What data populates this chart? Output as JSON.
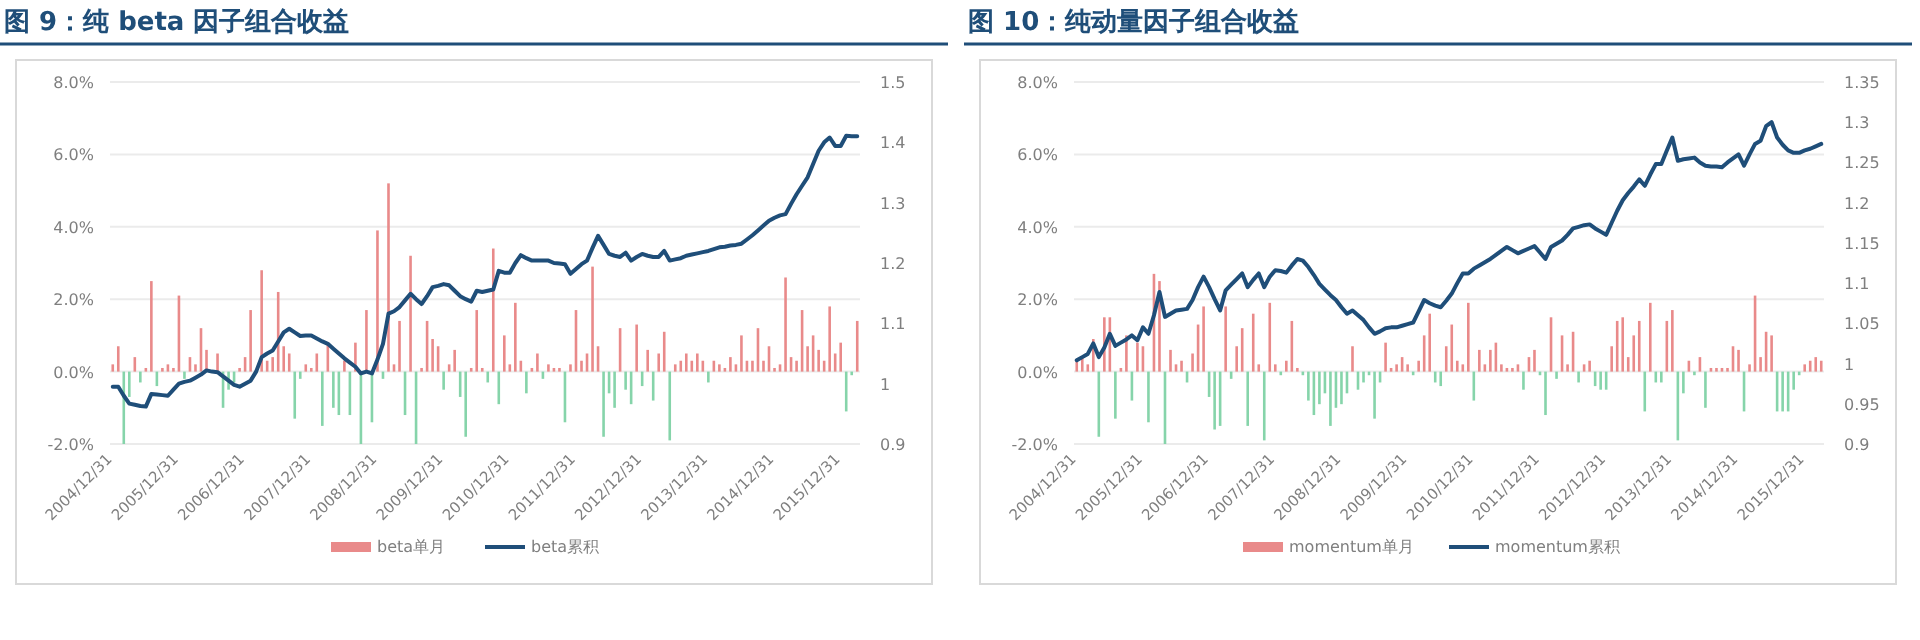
{
  "chart_data": [
    {
      "type": "bar",
      "title": "图 9：纯 beta 因子组合收益",
      "grid": "y",
      "legend": "bottom",
      "categories": [
        "2004/12/31",
        null,
        null,
        null,
        null,
        null,
        null,
        null,
        null,
        null,
        null,
        null,
        "2005/12/31",
        null,
        null,
        null,
        null,
        null,
        null,
        null,
        null,
        null,
        null,
        null,
        "2006/12/31",
        null,
        null,
        null,
        null,
        null,
        null,
        null,
        null,
        null,
        null,
        null,
        "2007/12/31",
        null,
        null,
        null,
        null,
        null,
        null,
        null,
        null,
        null,
        null,
        null,
        "2008/12/31",
        null,
        null,
        null,
        null,
        null,
        null,
        null,
        null,
        null,
        null,
        null,
        "2009/12/31",
        null,
        null,
        null,
        null,
        null,
        null,
        null,
        null,
        null,
        null,
        null,
        "2010/12/31",
        null,
        null,
        null,
        null,
        null,
        null,
        null,
        null,
        null,
        null,
        null,
        "2011/12/31",
        null,
        null,
        null,
        null,
        null,
        null,
        null,
        null,
        null,
        null,
        null,
        "2012/12/31",
        null,
        null,
        null,
        null,
        null,
        null,
        null,
        null,
        null,
        null,
        null,
        "2013/12/31",
        null,
        null,
        null,
        null,
        null,
        null,
        null,
        null,
        null,
        null,
        null,
        "2014/12/31",
        null,
        null,
        null,
        null,
        null,
        null,
        null,
        null,
        null,
        null,
        null,
        "2015/12/31",
        null,
        null,
        null
      ],
      "ylim": [
        -2,
        8
      ],
      "yticks": [
        {
          "value": -2,
          "label": "-2.0%"
        },
        {
          "value": 0,
          "label": "0.0%"
        },
        {
          "value": 2,
          "label": "2.0%"
        },
        {
          "value": 4,
          "label": "4.0%"
        },
        {
          "value": 6,
          "label": "6.0%"
        },
        {
          "value": 8,
          "label": "8.0%"
        }
      ],
      "y2lim": [
        0.9,
        1.5
      ],
      "y2ticks": [
        0.9,
        1,
        1.1,
        1.2,
        1.3,
        1.4,
        1.5
      ],
      "series": [
        {
          "name": "beta单月",
          "color": "#e98a8a",
          "values": [
            0.2,
            0.7,
            -2.0,
            -0.7,
            0.4,
            -0.3,
            0.1,
            2.5,
            -0.4,
            0.1,
            0.2,
            0.1,
            2.1,
            -0.2,
            0.4,
            0.2,
            1.2,
            0.6,
            null,
            0.5,
            -1.0,
            -0.5,
            -0.3,
            0.1,
            0.4,
            1.7,
            null,
            2.8,
            0.3,
            0.4,
            2.2,
            0.7,
            0.5,
            -1.3,
            -0.2,
            0.2,
            0.1,
            0.5,
            -1.5,
            0.8,
            -1.0,
            -1.2,
            0.3,
            -1.2,
            0.8,
            -2.0,
            1.7,
            -1.4,
            3.9,
            -0.2,
            5.2,
            0.2,
            1.4,
            -1.2,
            3.2,
            -2.0,
            0.1,
            1.4,
            0.9,
            0.7,
            -0.5,
            0.2,
            0.6,
            -0.7,
            -1.8,
            0.1,
            1.7,
            0.1,
            -0.3,
            3.4,
            -0.9,
            1.0,
            0.2,
            1.9,
            0.3,
            -0.6,
            0.1,
            0.5,
            -0.2,
            0.2,
            0.1,
            0.1,
            -1.4,
            0.2,
            1.7,
            0.3,
            0.5,
            2.9,
            0.7,
            -1.8,
            -0.6,
            -1.0,
            1.2,
            -0.5,
            -0.9,
            1.3,
            -0.4,
            0.6,
            -0.8,
            0.5,
            1.1,
            -1.9,
            0.2,
            0.3,
            0.5,
            0.3,
            0.5,
            0.3,
            -0.3,
            0.3,
            0.2,
            0.1,
            0.4,
            0.2,
            1.0,
            0.3,
            0.3,
            1.2,
            0.3,
            0.7,
            0.1,
            0.2,
            2.6,
            0.4,
            0.3,
            1.7,
            0.7,
            1.0,
            0.6,
            0.3,
            1.8,
            0.5,
            0.8,
            -1.1,
            -0.1,
            1.4
          ],
          "colors": [
            "#e98a8a",
            "#e98a8a",
            "#86d4aa",
            "#86d4aa",
            "#e98a8a",
            "#86d4aa",
            "#e98a8a",
            "#e98a8a",
            "#86d4aa",
            "#e98a8a",
            "#e98a8a",
            "#e98a8a",
            "#e98a8a",
            "#86d4aa",
            "#e98a8a",
            "#e98a8a",
            "#e98a8a",
            "#e98a8a",
            null,
            "#e98a8a",
            "#86d4aa",
            "#86d4aa",
            "#86d4aa",
            "#e98a8a",
            "#e98a8a",
            "#e98a8a",
            null,
            "#e98a8a",
            "#e98a8a",
            "#e98a8a",
            "#e98a8a",
            "#e98a8a",
            "#e98a8a",
            "#86d4aa",
            "#86d4aa",
            "#e98a8a",
            "#e98a8a",
            "#e98a8a",
            "#86d4aa",
            "#e98a8a",
            "#86d4aa",
            "#86d4aa",
            "#e98a8a",
            "#86d4aa",
            "#e98a8a",
            "#86d4aa",
            "#e98a8a",
            "#86d4aa",
            "#e98a8a",
            "#86d4aa",
            "#e98a8a",
            "#e98a8a",
            "#e98a8a",
            "#86d4aa",
            "#e98a8a",
            "#86d4aa",
            "#e98a8a",
            "#e98a8a",
            "#e98a8a",
            "#e98a8a",
            "#86d4aa",
            "#e98a8a",
            "#e98a8a",
            "#86d4aa",
            "#86d4aa",
            "#e98a8a",
            "#e98a8a",
            "#e98a8a",
            "#86d4aa",
            "#e98a8a",
            "#86d4aa",
            "#e98a8a",
            "#e98a8a",
            "#e98a8a",
            "#e98a8a",
            "#86d4aa",
            "#e98a8a",
            "#e98a8a",
            "#86d4aa",
            "#e98a8a",
            "#e98a8a",
            "#e98a8a",
            "#86d4aa",
            "#e98a8a",
            "#e98a8a",
            "#e98a8a",
            "#e98a8a",
            "#e98a8a",
            "#e98a8a",
            "#86d4aa",
            "#86d4aa",
            "#86d4aa",
            "#e98a8a",
            "#86d4aa",
            "#86d4aa",
            "#e98a8a",
            "#86d4aa",
            "#e98a8a",
            "#86d4aa",
            "#e98a8a",
            "#e98a8a",
            "#86d4aa",
            "#e98a8a",
            "#e98a8a",
            "#e98a8a",
            "#e98a8a",
            "#e98a8a",
            "#e98a8a",
            "#86d4aa",
            "#e98a8a",
            "#e98a8a",
            "#e98a8a",
            "#e98a8a",
            "#e98a8a",
            "#e98a8a",
            "#e98a8a",
            "#e98a8a",
            "#e98a8a",
            "#e98a8a",
            "#e98a8a",
            "#e98a8a",
            "#e98a8a",
            "#e98a8a",
            "#e98a8a",
            "#e98a8a",
            "#e98a8a",
            "#e98a8a",
            "#e98a8a",
            "#e98a8a",
            "#e98a8a",
            "#e98a8a",
            "#e98a8a",
            "#e98a8a",
            "#86d4aa",
            "#86d4aa",
            "#e98a8a"
          ]
        },
        {
          "name": "beta累积",
          "type": "line",
          "axis": "y2",
          "color": "#1f4e79",
          "values": [
            0.995,
            0.995,
            0.98,
            0.967,
            0.965,
            0.963,
            0.962,
            0.983,
            0.982,
            0.981,
            0.98,
            0.99,
            1.0,
            1.003,
            1.005,
            1.01,
            1.015,
            1.022,
            1.02,
            1.019,
            1.012,
            1.005,
            0.998,
            0.995,
            1.0,
            1.005,
            1.02,
            1.044,
            1.05,
            1.055,
            1.07,
            1.085,
            1.091,
            1.085,
            1.079,
            1.08,
            1.08,
            1.075,
            1.07,
            1.066,
            1.058,
            1.05,
            1.042,
            1.035,
            1.028,
            1.017,
            1.02,
            1.017,
            1.04,
            1.066,
            1.116,
            1.12,
            1.127,
            1.138,
            1.149,
            1.14,
            1.132,
            1.145,
            1.16,
            1.162,
            1.165,
            1.163,
            1.154,
            1.145,
            1.14,
            1.136,
            1.154,
            1.152,
            1.154,
            1.156,
            1.187,
            1.184,
            1.184,
            1.2,
            1.213,
            1.208,
            1.204,
            1.204,
            1.204,
            1.204,
            1.2,
            1.199,
            1.198,
            1.182,
            1.19,
            1.198,
            1.204,
            1.225,
            1.245,
            1.23,
            1.215,
            1.212,
            1.21,
            1.217,
            1.204,
            1.21,
            1.215,
            1.212,
            1.21,
            1.21,
            1.22,
            1.204,
            1.206,
            1.208,
            1.212,
            1.214,
            1.216,
            1.218,
            1.22,
            1.223,
            1.226,
            1.227,
            1.229,
            1.23,
            1.232,
            1.239,
            1.246,
            1.254,
            1.262,
            1.27,
            1.275,
            1.279,
            1.281,
            1.298,
            1.314,
            1.328,
            1.342,
            1.364,
            1.386,
            1.4,
            1.408,
            1.394,
            1.394,
            1.411,
            1.41,
            1.41
          ]
        }
      ]
    },
    {
      "type": "bar",
      "title": "图 10：纯动量因子组合收益",
      "grid": "y",
      "legend": "bottom",
      "categories": [
        "2004/12/31",
        null,
        null,
        null,
        null,
        null,
        null,
        null,
        null,
        null,
        null,
        null,
        "2005/12/31",
        null,
        null,
        null,
        null,
        null,
        null,
        null,
        null,
        null,
        null,
        null,
        "2006/12/31",
        null,
        null,
        null,
        null,
        null,
        null,
        null,
        null,
        null,
        null,
        null,
        "2007/12/31",
        null,
        null,
        null,
        null,
        null,
        null,
        null,
        null,
        null,
        null,
        null,
        "2008/12/31",
        null,
        null,
        null,
        null,
        null,
        null,
        null,
        null,
        null,
        null,
        null,
        "2009/12/31",
        null,
        null,
        null,
        null,
        null,
        null,
        null,
        null,
        null,
        null,
        null,
        "2010/12/31",
        null,
        null,
        null,
        null,
        null,
        null,
        null,
        null,
        null,
        null,
        null,
        "2011/12/31",
        null,
        null,
        null,
        null,
        null,
        null,
        null,
        null,
        null,
        null,
        null,
        "2012/12/31",
        null,
        null,
        null,
        null,
        null,
        null,
        null,
        null,
        null,
        null,
        null,
        "2013/12/31",
        null,
        null,
        null,
        null,
        null,
        null,
        null,
        null,
        null,
        null,
        null,
        "2014/12/31",
        null,
        null,
        null,
        null,
        null,
        null,
        null,
        null,
        null,
        null,
        null,
        "2015/12/31",
        null,
        null,
        null
      ],
      "ylim": [
        -2,
        8
      ],
      "yticks": [
        {
          "value": -2,
          "label": "-2.0%"
        },
        {
          "value": 0,
          "label": "0.0%"
        },
        {
          "value": 2,
          "label": "2.0%"
        },
        {
          "value": 4,
          "label": "4.0%"
        },
        {
          "value": 6,
          "label": "6.0%"
        },
        {
          "value": 8,
          "label": "8.0%"
        }
      ],
      "y2lim": [
        0.9,
        1.35
      ],
      "y2ticks": [
        0.9,
        0.95,
        1,
        1.05,
        1.1,
        1.15,
        1.2,
        1.25,
        1.3,
        1.35
      ],
      "series": [
        {
          "name": "momentum单月",
          "color": "#e98a8a",
          "values": [
            0.3,
            0.4,
            0.2,
            0.9,
            -1.8,
            1.5,
            1.5,
            -1.3,
            0.1,
            1.0,
            -0.8,
            0.8,
            0.7,
            -1.4,
            2.7,
            2.5,
            -2.0,
            0.6,
            0.2,
            0.3,
            -0.3,
            0.5,
            1.3,
            1.8,
            -0.7,
            -1.6,
            -1.5,
            1.8,
            -0.2,
            0.7,
            1.2,
            -1.5,
            1.6,
            0.2,
            -1.9,
            1.9,
            0.2,
            -0.1,
            0.3,
            1.4,
            0.1,
            -0.1,
            -0.8,
            -1.2,
            -0.9,
            -0.6,
            -1.5,
            -1.0,
            -0.9,
            -0.6,
            0.7,
            -0.5,
            -0.3,
            -0.1,
            -1.3,
            -0.3,
            0.8,
            0.1,
            0.2,
            0.4,
            0.2,
            -0.1,
            0.3,
            1.0,
            1.6,
            -0.3,
            -0.4,
            0.7,
            1.3,
            0.3,
            0.2,
            1.9,
            -0.8,
            0.6,
            0.2,
            0.6,
            0.8,
            0.2,
            0.1,
            0.1,
            0.2,
            -0.5,
            0.4,
            0.6,
            -0.1,
            -1.2,
            1.5,
            -0.2,
            1.0,
            0.2,
            1.1,
            -0.3,
            0.2,
            0.3,
            -0.4,
            -0.5,
            -0.5,
            0.7,
            1.4,
            1.5,
            0.4,
            1.0,
            1.4,
            -1.1,
            1.9,
            -0.3,
            -0.3,
            1.4,
            1.7,
            -1.9,
            -0.6,
            0.3,
            -0.1,
            0.4,
            -1.0,
            0.1,
            0.1,
            0.1,
            0.1,
            0.7,
            0.6,
            -1.1,
            0.2,
            2.1,
            0.4,
            1.1,
            1.0,
            -1.1,
            -1.1,
            -1.1,
            -0.5,
            -0.1,
            0.2,
            0.3,
            0.4,
            0.3
          ],
          "colors": [
            "#e98a8a",
            "#e98a8a",
            "#e98a8a",
            "#e98a8a",
            "#86d4aa",
            "#e98a8a",
            "#e98a8a",
            "#86d4aa",
            "#e98a8a",
            "#e98a8a",
            "#86d4aa",
            "#e98a8a",
            "#e98a8a",
            "#86d4aa",
            "#e98a8a",
            "#e98a8a",
            "#86d4aa",
            "#e98a8a",
            "#e98a8a",
            "#e98a8a",
            "#86d4aa",
            "#e98a8a",
            "#e98a8a",
            "#e98a8a",
            "#86d4aa",
            "#86d4aa",
            "#86d4aa",
            "#e98a8a",
            "#86d4aa",
            "#e98a8a",
            "#e98a8a",
            "#86d4aa",
            "#e98a8a",
            "#e98a8a",
            "#86d4aa",
            "#e98a8a",
            "#e98a8a",
            "#86d4aa",
            "#e98a8a",
            "#e98a8a",
            "#e98a8a",
            "#86d4aa",
            "#86d4aa",
            "#86d4aa",
            "#86d4aa",
            "#86d4aa",
            "#86d4aa",
            "#86d4aa",
            "#86d4aa",
            "#86d4aa",
            "#e98a8a",
            "#86d4aa",
            "#86d4aa",
            "#86d4aa",
            "#86d4aa",
            "#86d4aa",
            "#e98a8a",
            "#e98a8a",
            "#e98a8a",
            "#e98a8a",
            "#e98a8a",
            "#86d4aa",
            "#e98a8a",
            "#e98a8a",
            "#e98a8a",
            "#86d4aa",
            "#86d4aa",
            "#e98a8a",
            "#e98a8a",
            "#e98a8a",
            "#e98a8a",
            "#e98a8a",
            "#86d4aa",
            "#e98a8a",
            "#e98a8a",
            "#e98a8a",
            "#e98a8a",
            "#e98a8a",
            "#e98a8a",
            "#e98a8a",
            "#e98a8a",
            "#86d4aa",
            "#e98a8a",
            "#e98a8a",
            "#86d4aa",
            "#86d4aa",
            "#e98a8a",
            "#86d4aa",
            "#e98a8a",
            "#e98a8a",
            "#e98a8a",
            "#86d4aa",
            "#e98a8a",
            "#e98a8a",
            "#86d4aa",
            "#86d4aa",
            "#86d4aa",
            "#e98a8a",
            "#e98a8a",
            "#e98a8a",
            "#e98a8a",
            "#e98a8a",
            "#e98a8a",
            "#86d4aa",
            "#e98a8a",
            "#86d4aa",
            "#86d4aa",
            "#e98a8a",
            "#e98a8a",
            "#86d4aa",
            "#86d4aa",
            "#e98a8a",
            "#86d4aa",
            "#e98a8a",
            "#86d4aa",
            "#e98a8a",
            "#e98a8a",
            "#e98a8a",
            "#e98a8a",
            "#e98a8a",
            "#e98a8a",
            "#86d4aa",
            "#e98a8a",
            "#e98a8a",
            "#e98a8a",
            "#e98a8a",
            "#e98a8a",
            "#86d4aa",
            "#86d4aa",
            "#86d4aa",
            "#86d4aa",
            "#86d4aa",
            "#e98a8a",
            "#e98a8a",
            "#e98a8a",
            "#e98a8a"
          ]
        },
        {
          "name": "momentum累积",
          "type": "line",
          "axis": "y2",
          "color": "#1f4e79",
          "values": [
            1.004,
            1.008,
            1.012,
            1.025,
            1.008,
            1.02,
            1.037,
            1.022,
            1.026,
            1.03,
            1.035,
            1.029,
            1.045,
            1.037,
            1.06,
            1.089,
            1.058,
            1.062,
            1.066,
            1.067,
            1.068,
            1.079,
            1.095,
            1.108,
            1.095,
            1.08,
            1.066,
            1.091,
            1.098,
            1.105,
            1.112,
            1.095,
            1.104,
            1.112,
            1.095,
            1.108,
            1.116,
            1.115,
            1.113,
            1.122,
            1.13,
            1.128,
            1.12,
            1.11,
            1.099,
            1.092,
            1.085,
            1.079,
            1.07,
            1.062,
            1.066,
            1.06,
            1.054,
            1.045,
            1.037,
            1.04,
            1.044,
            1.045,
            1.045,
            1.047,
            1.049,
            1.051,
            1.065,
            1.079,
            1.075,
            1.072,
            1.07,
            1.078,
            1.087,
            1.1,
            1.112,
            1.112,
            1.118,
            1.122,
            1.126,
            1.13,
            1.135,
            1.14,
            1.145,
            1.141,
            1.137,
            1.14,
            1.143,
            1.146,
            1.138,
            1.13,
            1.145,
            1.149,
            1.153,
            1.16,
            1.168,
            1.17,
            1.172,
            1.173,
            1.168,
            1.164,
            1.16,
            1.175,
            1.19,
            1.203,
            1.212,
            1.22,
            1.229,
            1.221,
            1.235,
            1.248,
            1.248,
            1.265,
            1.281,
            1.252,
            1.254,
            1.255,
            1.256,
            1.25,
            1.246,
            1.245,
            1.245,
            1.244,
            1.25,
            1.255,
            1.26,
            1.246,
            1.26,
            1.273,
            1.277,
            1.295,
            1.3,
            1.281,
            1.272,
            1.265,
            1.262,
            1.262,
            1.265,
            1.267,
            1.27,
            1.273
          ]
        }
      ]
    }
  ]
}
